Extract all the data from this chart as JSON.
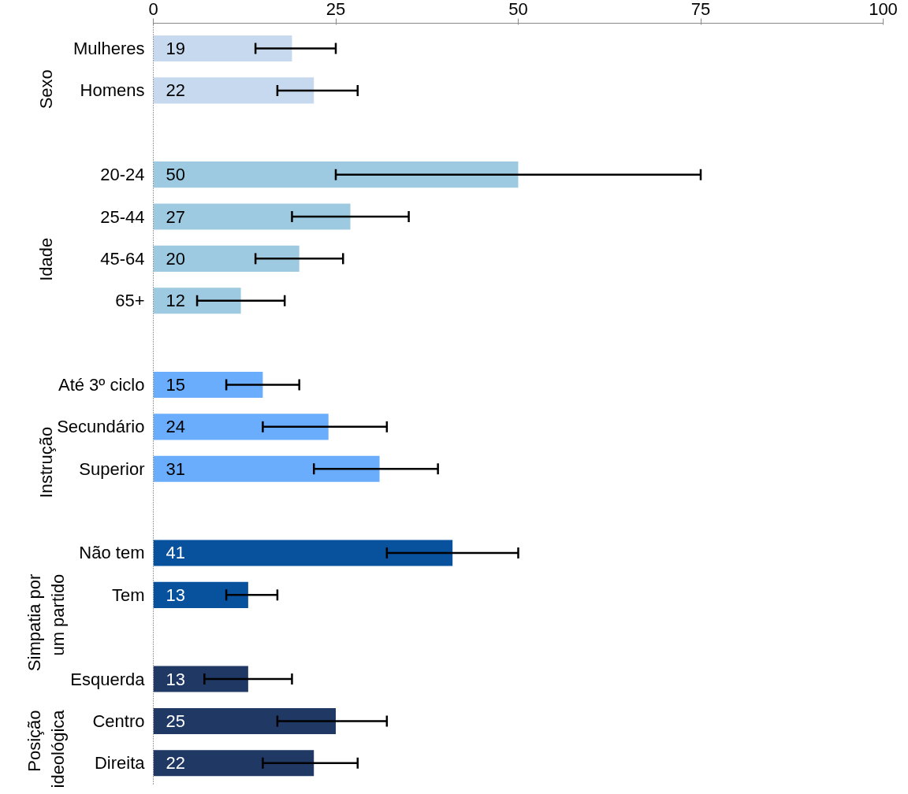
{
  "chart_data": {
    "type": "bar",
    "orientation": "horizontal",
    "data_labels": true,
    "grid": false,
    "categories": [
      "Mulheres",
      "Homens",
      null,
      "20-24",
      "25-44",
      "45-64",
      "65+",
      null,
      "Até 3º ciclo",
      "Secundário",
      "Superior",
      null,
      "Não tem",
      "Tem",
      null,
      "Esquerda",
      "Centro",
      "Direita"
    ],
    "values": [
      19,
      22,
      null,
      50,
      27,
      20,
      12,
      null,
      15,
      24,
      31,
      null,
      41,
      13,
      null,
      13,
      25,
      22
    ],
    "colors": [
      "#c6d9ee",
      "#c6d9ee",
      null,
      "#9ecae1",
      "#9ecae1",
      "#9ecae1",
      "#9ecae1",
      null,
      "#6aadfd",
      "#6aadfd",
      "#6aadfd",
      null,
      "#08519c",
      "#08519c",
      null,
      "#203864",
      "#203864",
      "#203864"
    ],
    "errors": [
      [
        14,
        25
      ],
      [
        17,
        28
      ],
      null,
      [
        25,
        75
      ],
      [
        19,
        35
      ],
      [
        14,
        26
      ],
      [
        6,
        18
      ],
      null,
      [
        10,
        20
      ],
      [
        15,
        32
      ],
      [
        22,
        39
      ],
      null,
      [
        32,
        50
      ],
      [
        10,
        17
      ],
      null,
      [
        7,
        19
      ],
      [
        17,
        32
      ],
      [
        15,
        28
      ]
    ],
    "xlim": [
      0,
      100
    ],
    "xticks": [
      0,
      25,
      50,
      75,
      100
    ],
    "annotations": [
      "Sexo",
      "Idade",
      "Instrução",
      "Simpatia por um partido",
      "Posição ideológica"
    ]
  }
}
